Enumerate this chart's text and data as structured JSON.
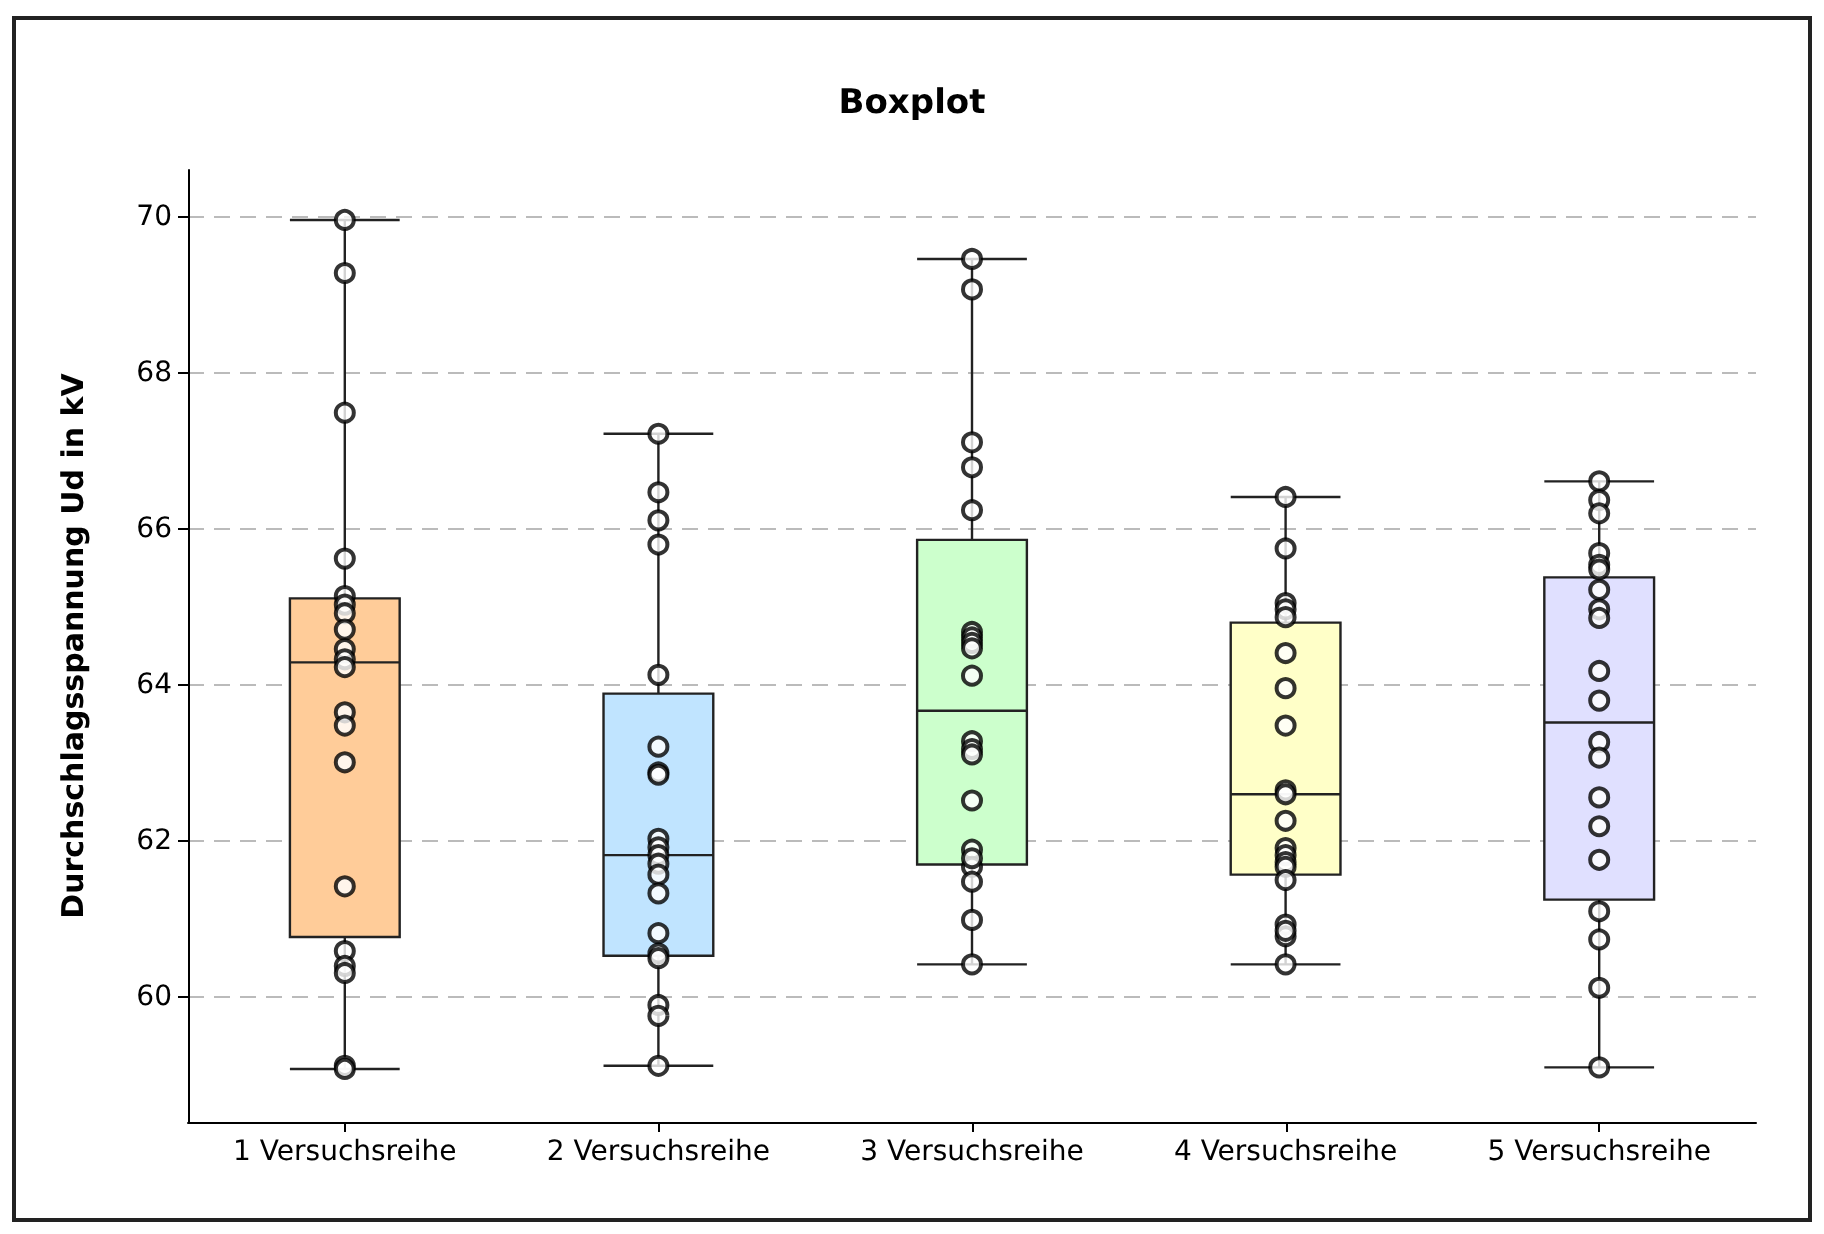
{
  "chart_data": {
    "type": "box",
    "title": "Boxplot",
    "ylabel": "Durchschlagsspannung Ud in kV",
    "categories": [
      "1 Versuchsreihe",
      "2 Versuchsreihe",
      "3 Versuchsreihe",
      "4 Versuchsreihe",
      "5 Versuchsreihe"
    ],
    "colors": [
      "#ffcc99",
      "#c0e4ff",
      "#ccffcc",
      "#ffffc8",
      "#e0e0ff"
    ],
    "boxes": [
      {
        "low": 59.08,
        "q1": 60.77,
        "median": 64.29,
        "q3": 65.11,
        "high": 69.96
      },
      {
        "low": 59.12,
        "q1": 60.53,
        "median": 61.82,
        "q3": 63.89,
        "high": 67.22
      },
      {
        "low": 60.42,
        "q1": 61.7,
        "median": 63.67,
        "q3": 65.86,
        "high": 69.46
      },
      {
        "low": 60.42,
        "q1": 61.57,
        "median": 62.6,
        "q3": 64.8,
        "high": 66.41
      },
      {
        "low": 59.1,
        "q1": 61.25,
        "median": 63.52,
        "q3": 65.38,
        "high": 66.61
      }
    ],
    "series": [
      {
        "type": "scatter",
        "color": "#000000",
        "marker": "circle",
        "x": [
          "1 Versuchsreihe",
          "1 Versuchsreihe",
          "1 Versuchsreihe",
          "1 Versuchsreihe",
          "1 Versuchsreihe",
          "1 Versuchsreihe",
          "1 Versuchsreihe",
          "1 Versuchsreihe",
          "1 Versuchsreihe",
          "1 Versuchsreihe",
          "1 Versuchsreihe",
          "1 Versuchsreihe",
          "1 Versuchsreihe",
          "1 Versuchsreihe",
          "1 Versuchsreihe",
          "1 Versuchsreihe",
          "1 Versuchsreihe",
          "1 Versuchsreihe",
          "1 Versuchsreihe",
          "1 Versuchsreihe",
          "2 Versuchsreihe",
          "2 Versuchsreihe",
          "2 Versuchsreihe",
          "2 Versuchsreihe",
          "2 Versuchsreihe",
          "2 Versuchsreihe",
          "2 Versuchsreihe",
          "2 Versuchsreihe",
          "2 Versuchsreihe",
          "2 Versuchsreihe",
          "2 Versuchsreihe",
          "2 Versuchsreihe",
          "2 Versuchsreihe",
          "2 Versuchsreihe",
          "2 Versuchsreihe",
          "2 Versuchsreihe",
          "2 Versuchsreihe",
          "2 Versuchsreihe",
          "2 Versuchsreihe",
          "2 Versuchsreihe",
          "3 Versuchsreihe",
          "3 Versuchsreihe",
          "3 Versuchsreihe",
          "3 Versuchsreihe",
          "3 Versuchsreihe",
          "3 Versuchsreihe",
          "3 Versuchsreihe",
          "3 Versuchsreihe",
          "3 Versuchsreihe",
          "3 Versuchsreihe",
          "3 Versuchsreihe",
          "3 Versuchsreihe",
          "3 Versuchsreihe",
          "3 Versuchsreihe",
          "3 Versuchsreihe",
          "3 Versuchsreihe",
          "3 Versuchsreihe",
          "3 Versuchsreihe",
          "3 Versuchsreihe",
          "3 Versuchsreihe",
          "4 Versuchsreihe",
          "4 Versuchsreihe",
          "4 Versuchsreihe",
          "4 Versuchsreihe",
          "4 Versuchsreihe",
          "4 Versuchsreihe",
          "4 Versuchsreihe",
          "4 Versuchsreihe",
          "4 Versuchsreihe",
          "4 Versuchsreihe",
          "4 Versuchsreihe",
          "4 Versuchsreihe",
          "4 Versuchsreihe",
          "4 Versuchsreihe",
          "4 Versuchsreihe",
          "4 Versuchsreihe",
          "4 Versuchsreihe",
          "4 Versuchsreihe",
          "4 Versuchsreihe",
          "4 Versuchsreihe",
          "5 Versuchsreihe",
          "5 Versuchsreihe",
          "5 Versuchsreihe",
          "5 Versuchsreihe",
          "5 Versuchsreihe",
          "5 Versuchsreihe",
          "5 Versuchsreihe",
          "5 Versuchsreihe",
          "5 Versuchsreihe",
          "5 Versuchsreihe",
          "5 Versuchsreihe",
          "5 Versuchsreihe",
          "5 Versuchsreihe",
          "5 Versuchsreihe",
          "5 Versuchsreihe",
          "5 Versuchsreihe",
          "5 Versuchsreihe",
          "5 Versuchsreihe",
          "5 Versuchsreihe",
          "5 Versuchsreihe"
        ],
        "values": [
          69.96,
          69.28,
          67.49,
          65.62,
          65.14,
          65.03,
          64.92,
          64.71,
          64.46,
          64.33,
          64.23,
          63.65,
          63.48,
          63.01,
          61.42,
          60.59,
          60.4,
          60.31,
          59.12,
          59.08,
          67.22,
          66.47,
          66.11,
          65.8,
          64.13,
          63.21,
          62.88,
          62.85,
          62.03,
          61.92,
          61.82,
          61.71,
          61.57,
          61.33,
          60.82,
          60.56,
          60.5,
          59.9,
          59.76,
          59.12,
          69.46,
          69.07,
          67.11,
          66.79,
          66.24,
          64.68,
          64.61,
          64.54,
          64.47,
          64.12,
          63.28,
          63.18,
          63.11,
          62.52,
          61.89,
          61.67,
          61.48,
          60.99,
          60.42,
          61.78,
          66.41,
          65.75,
          65.05,
          64.97,
          64.87,
          64.41,
          63.96,
          63.48,
          62.65,
          62.6,
          62.26,
          61.91,
          61.82,
          61.73,
          61.67,
          61.5,
          60.93,
          60.78,
          60.42,
          60.85,
          66.61,
          66.37,
          66.2,
          65.69,
          65.54,
          65.48,
          65.22,
          64.97,
          64.86,
          64.18,
          63.8,
          63.27,
          63.07,
          62.56,
          62.19,
          61.76,
          61.1,
          60.74,
          60.12,
          59.1
        ]
      }
    ],
    "ylim": [
      58.4,
      70.6
    ],
    "yticks": [
      60,
      62,
      64,
      66,
      68,
      70
    ],
    "grid": "y"
  }
}
